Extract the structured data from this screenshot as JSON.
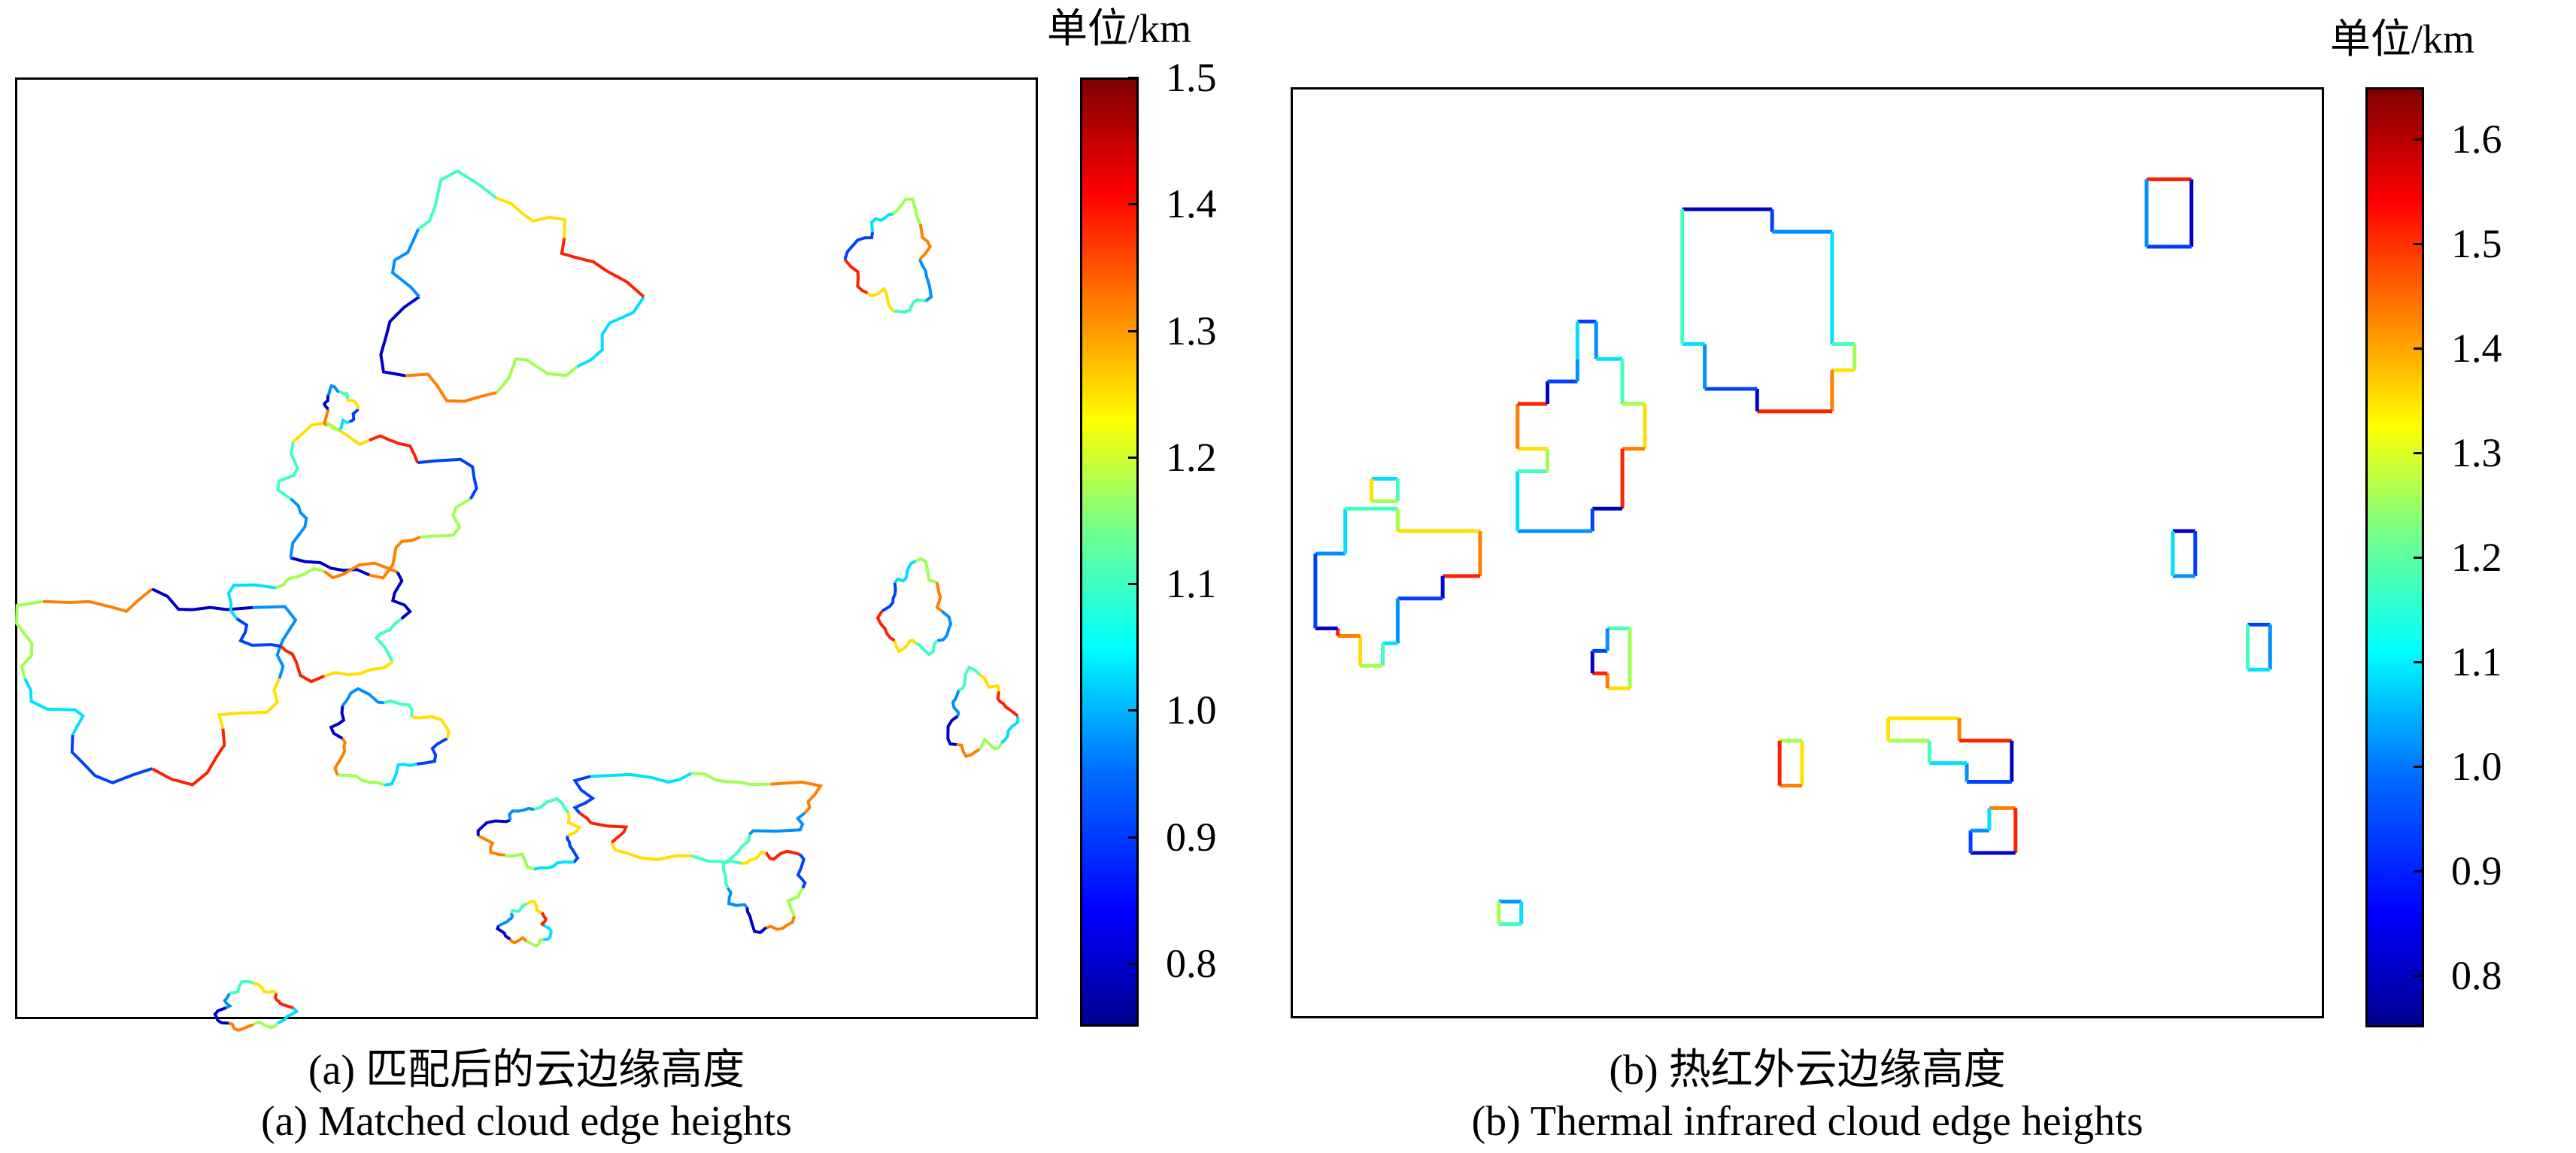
{
  "panels": [
    {
      "id": "a",
      "caption_cn": "(a) 匹配后的云边缘高度",
      "caption_en": "(a) Matched cloud edge heights",
      "colorbar": {
        "unit": "单位/km",
        "min": 0.75,
        "max": 1.5,
        "ticks": [
          1.5,
          1.4,
          1.3,
          1.2,
          1.1,
          1.0,
          0.9,
          0.8
        ],
        "tick_labels": [
          "1.5",
          "1.4",
          "1.3",
          "1.2",
          "1.1",
          "1.0",
          "0.9",
          "0.8"
        ]
      },
      "colormap": "jet"
    },
    {
      "id": "b",
      "caption_cn": "(b) 热红外云边缘高度",
      "caption_en": "(b) Thermal infrared cloud edge heights",
      "colorbar": {
        "unit": "单位/km",
        "min": 0.75,
        "max": 1.65,
        "ticks": [
          1.6,
          1.5,
          1.4,
          1.3,
          1.2,
          1.1,
          1.0,
          0.9,
          0.8
        ],
        "tick_labels": [
          "1.6",
          "1.5",
          "1.4",
          "1.3",
          "1.2",
          "1.1",
          "1.0",
          "0.9",
          "0.8"
        ]
      },
      "colormap": "jet"
    }
  ],
  "chart_data": [
    {
      "type": "heatmap",
      "title": "(a) 匹配后的云边缘高度 / (a) Matched cloud edge heights",
      "colorbar_label": "单位/km",
      "colorbar_range": [
        0.75,
        1.5
      ],
      "colorbar_ticks": [
        0.8,
        0.9,
        1.0,
        1.1,
        1.2,
        1.3,
        1.4,
        1.5
      ],
      "colormap": "jet",
      "axes_ticks": "none"
    },
    {
      "type": "heatmap",
      "title": "(b) 热红外云边缘高度 / (b) Thermal infrared cloud edge heights",
      "colorbar_label": "单位/km",
      "colorbar_range": [
        0.75,
        1.65
      ],
      "colorbar_ticks": [
        0.8,
        0.9,
        1.0,
        1.1,
        1.2,
        1.3,
        1.4,
        1.5,
        1.6
      ],
      "colormap": "jet",
      "axes_ticks": "none"
    }
  ]
}
